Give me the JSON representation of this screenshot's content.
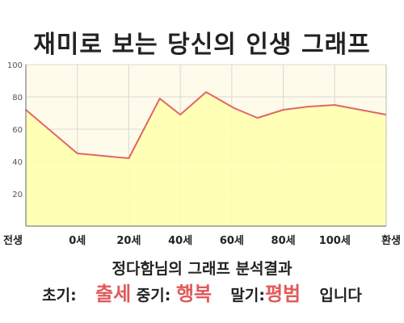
{
  "title": "재미로 보는 당신의 인생 그래프",
  "chart_data": {
    "type": "area",
    "title": "",
    "xlabel": "",
    "ylabel": "",
    "ylim": [
      0,
      100
    ],
    "yticks": [
      20,
      40,
      60,
      80,
      100
    ],
    "xticks": [
      "전생",
      "0세",
      "20세",
      "40세",
      "60세",
      "80세",
      "100세",
      "환생"
    ],
    "grid": true,
    "series": [
      {
        "x": [
          0,
          1,
          2,
          2.6,
          3,
          3.5,
          4.05,
          4.5,
          5,
          5.5,
          6,
          7
        ],
        "values": [
          72,
          45,
          42,
          79,
          69,
          83,
          73,
          67,
          72,
          74,
          75,
          69
        ]
      }
    ],
    "colors": {
      "line": "#e06666",
      "fill": "#ffffb0",
      "plot_bg": "#fffbea",
      "grid": "#d8d8d8"
    }
  },
  "result": {
    "title": "정다함님의 그래프 분석결과",
    "early_label": "초기:",
    "early_value": "출세",
    "middle_label": "중기:",
    "middle_value": "행복",
    "late_label": "말기:",
    "late_value": "평범",
    "suffix": "입니다"
  }
}
